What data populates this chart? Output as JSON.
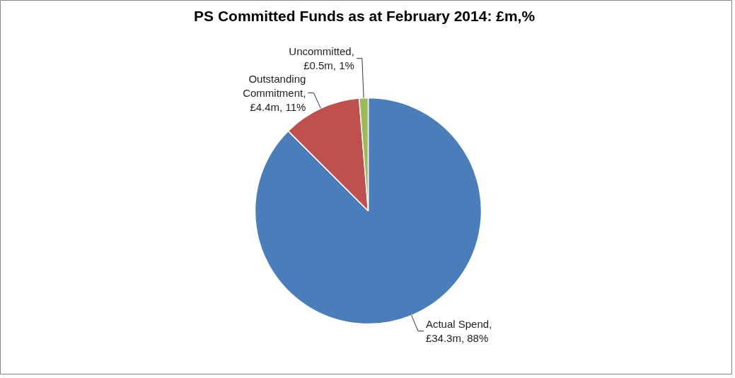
{
  "chart_data": {
    "type": "pie",
    "title": "PS Committed  Funds as at February 2014: £m,%",
    "categories": [
      "Actual Spend, £34.3m, 88%",
      "Outstanding Commitment, £4.4m, 11%",
      "Uncommitted, £0.5m, 1%"
    ],
    "values": [
      34.3,
      4.4,
      0.5
    ],
    "colors": [
      "#4a7ebb",
      "#c0504d",
      "#9bbb59"
    ]
  }
}
